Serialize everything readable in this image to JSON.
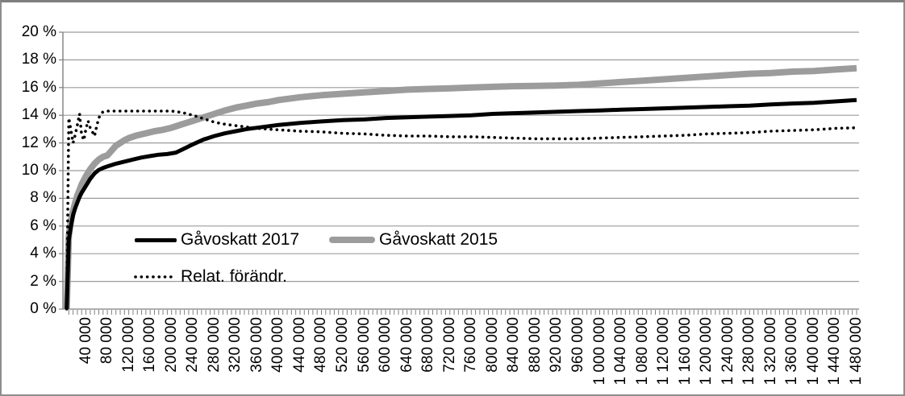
{
  "colors": {
    "background": "#ffffff",
    "frame_border": "#8e8e8e",
    "gridline": "#9b9b9b",
    "axis": "#7f7f7f",
    "series_2017": "#000000",
    "series_2015": "#9c9c9c",
    "series_relative": "#000000"
  },
  "chart_data": {
    "type": "line",
    "title": "",
    "xlabel": "",
    "ylabel": "",
    "grid": true,
    "legend_position": "inside-plot-left",
    "y_axis": {
      "min": 0,
      "max": 20,
      "step": 2,
      "unit": "%",
      "tick_labels": [
        "0 %",
        "2 %",
        "4 %",
        "6 %",
        "8 %",
        "10 %",
        "12 %",
        "14 %",
        "16 %",
        "18 %",
        "20 %"
      ]
    },
    "x_axis": {
      "min": 0,
      "max": 1480000,
      "label_step": 40000,
      "minor_tick_step": 8000,
      "tick_labels": [
        "40 000",
        "80 000",
        "120 000",
        "160 000",
        "200 000",
        "240 000",
        "280 000",
        "320 000",
        "360 000",
        "400 000",
        "440 000",
        "480 000",
        "520 000",
        "560 000",
        "600 000",
        "640 000",
        "680 000",
        "720 000",
        "760 000",
        "800 000",
        "840 000",
        "880 000",
        "920 000",
        "960 000",
        "1 000 000",
        "1 040 000",
        "1 080 000",
        "1 120 000",
        "1 160 000",
        "1 200 000",
        "1 240 000",
        "1 280 000",
        "1 320 000",
        "1 360 000",
        "1 400 000",
        "1 440 000",
        "1 480 000"
      ]
    },
    "legend": [
      {
        "label": "Gåvoskatt 2017",
        "style": "solid-black"
      },
      {
        "label": "Gåvoskatt 2015",
        "style": "solid-gray"
      },
      {
        "label": "Relat. förändr.",
        "style": "dotted-black"
      }
    ],
    "series": [
      {
        "name": "Gåvoskatt 2015",
        "color": "#9c9c9c",
        "width": 8,
        "dash": "solid",
        "points": [
          [
            4000,
            0
          ],
          [
            8000,
            5.3
          ],
          [
            12000,
            6.4
          ],
          [
            16000,
            7.1
          ],
          [
            20000,
            7.7
          ],
          [
            24000,
            8.2
          ],
          [
            28000,
            8.6
          ],
          [
            32000,
            9.0
          ],
          [
            36000,
            9.3
          ],
          [
            40000,
            9.6
          ],
          [
            48000,
            10.1
          ],
          [
            56000,
            10.5
          ],
          [
            64000,
            10.8
          ],
          [
            72000,
            11.0
          ],
          [
            80000,
            11.1
          ],
          [
            88000,
            11.45
          ],
          [
            96000,
            11.8
          ],
          [
            104000,
            12.0
          ],
          [
            112000,
            12.2
          ],
          [
            120000,
            12.35
          ],
          [
            136000,
            12.55
          ],
          [
            152000,
            12.7
          ],
          [
            168000,
            12.85
          ],
          [
            184000,
            12.95
          ],
          [
            200000,
            13.1
          ],
          [
            216000,
            13.3
          ],
          [
            232000,
            13.5
          ],
          [
            248000,
            13.7
          ],
          [
            264000,
            13.9
          ],
          [
            280000,
            14.1
          ],
          [
            300000,
            14.35
          ],
          [
            320000,
            14.55
          ],
          [
            340000,
            14.7
          ],
          [
            360000,
            14.85
          ],
          [
            380000,
            14.95
          ],
          [
            400000,
            15.1
          ],
          [
            440000,
            15.3
          ],
          [
            480000,
            15.45
          ],
          [
            520000,
            15.55
          ],
          [
            560000,
            15.65
          ],
          [
            600000,
            15.75
          ],
          [
            640000,
            15.85
          ],
          [
            680000,
            15.9
          ],
          [
            720000,
            15.95
          ],
          [
            760000,
            16.0
          ],
          [
            800000,
            16.05
          ],
          [
            840000,
            16.1
          ],
          [
            880000,
            16.12
          ],
          [
            920000,
            16.15
          ],
          [
            960000,
            16.2
          ],
          [
            1000000,
            16.3
          ],
          [
            1040000,
            16.4
          ],
          [
            1080000,
            16.5
          ],
          [
            1120000,
            16.6
          ],
          [
            1160000,
            16.7
          ],
          [
            1200000,
            16.8
          ],
          [
            1240000,
            16.9
          ],
          [
            1280000,
            17.0
          ],
          [
            1320000,
            17.05
          ],
          [
            1360000,
            17.15
          ],
          [
            1400000,
            17.2
          ],
          [
            1440000,
            17.3
          ],
          [
            1480000,
            17.4
          ]
        ]
      },
      {
        "name": "Gåvoskatt 2017",
        "color": "#000000",
        "width": 5,
        "dash": "solid",
        "points": [
          [
            4000,
            0
          ],
          [
            8000,
            5.0
          ],
          [
            12000,
            6.0
          ],
          [
            16000,
            6.8
          ],
          [
            20000,
            7.3
          ],
          [
            24000,
            7.7
          ],
          [
            28000,
            8.1
          ],
          [
            32000,
            8.4
          ],
          [
            36000,
            8.65
          ],
          [
            40000,
            8.9
          ],
          [
            48000,
            9.4
          ],
          [
            56000,
            9.8
          ],
          [
            64000,
            10.05
          ],
          [
            72000,
            10.2
          ],
          [
            80000,
            10.3
          ],
          [
            96000,
            10.5
          ],
          [
            112000,
            10.65
          ],
          [
            128000,
            10.8
          ],
          [
            144000,
            10.95
          ],
          [
            160000,
            11.05
          ],
          [
            176000,
            11.15
          ],
          [
            192000,
            11.2
          ],
          [
            208000,
            11.3
          ],
          [
            224000,
            11.6
          ],
          [
            240000,
            11.9
          ],
          [
            260000,
            12.25
          ],
          [
            280000,
            12.5
          ],
          [
            300000,
            12.7
          ],
          [
            320000,
            12.85
          ],
          [
            340000,
            13.0
          ],
          [
            360000,
            13.1
          ],
          [
            400000,
            13.3
          ],
          [
            440000,
            13.45
          ],
          [
            480000,
            13.55
          ],
          [
            520000,
            13.65
          ],
          [
            560000,
            13.7
          ],
          [
            600000,
            13.8
          ],
          [
            640000,
            13.85
          ],
          [
            680000,
            13.9
          ],
          [
            720000,
            13.95
          ],
          [
            760000,
            14.0
          ],
          [
            800000,
            14.1
          ],
          [
            840000,
            14.15
          ],
          [
            880000,
            14.2
          ],
          [
            920000,
            14.25
          ],
          [
            960000,
            14.3
          ],
          [
            1000000,
            14.35
          ],
          [
            1040000,
            14.4
          ],
          [
            1080000,
            14.45
          ],
          [
            1120000,
            14.5
          ],
          [
            1160000,
            14.55
          ],
          [
            1200000,
            14.6
          ],
          [
            1240000,
            14.65
          ],
          [
            1280000,
            14.7
          ],
          [
            1320000,
            14.78
          ],
          [
            1360000,
            14.85
          ],
          [
            1400000,
            14.9
          ],
          [
            1440000,
            15.0
          ],
          [
            1480000,
            15.1
          ]
        ]
      },
      {
        "name": "Relat. förändr.",
        "color": "#000000",
        "width": 3.6,
        "dash": "dotted",
        "points": [
          [
            4000,
            0
          ],
          [
            8000,
            13.8
          ],
          [
            12000,
            12.9
          ],
          [
            16000,
            12.0
          ],
          [
            20000,
            12.6
          ],
          [
            24000,
            13.3
          ],
          [
            28000,
            14.1
          ],
          [
            32000,
            12.6
          ],
          [
            36000,
            12.2
          ],
          [
            40000,
            13.0
          ],
          [
            44000,
            13.6
          ],
          [
            48000,
            13.1
          ],
          [
            52000,
            12.8
          ],
          [
            56000,
            12.5
          ],
          [
            60000,
            13.2
          ],
          [
            64000,
            13.8
          ],
          [
            68000,
            14.1
          ],
          [
            72000,
            14.25
          ],
          [
            80000,
            14.3
          ],
          [
            120000,
            14.3
          ],
          [
            160000,
            14.3
          ],
          [
            200000,
            14.3
          ],
          [
            220000,
            14.2
          ],
          [
            240000,
            14.0
          ],
          [
            260000,
            13.75
          ],
          [
            280000,
            13.5
          ],
          [
            300000,
            13.35
          ],
          [
            320000,
            13.25
          ],
          [
            360000,
            13.05
          ],
          [
            400000,
            12.95
          ],
          [
            440000,
            12.85
          ],
          [
            480000,
            12.8
          ],
          [
            520000,
            12.7
          ],
          [
            560000,
            12.65
          ],
          [
            600000,
            12.55
          ],
          [
            640000,
            12.5
          ],
          [
            680000,
            12.5
          ],
          [
            720000,
            12.45
          ],
          [
            760000,
            12.45
          ],
          [
            800000,
            12.4
          ],
          [
            840000,
            12.35
          ],
          [
            880000,
            12.3
          ],
          [
            920000,
            12.3
          ],
          [
            960000,
            12.3
          ],
          [
            1000000,
            12.35
          ],
          [
            1040000,
            12.4
          ],
          [
            1080000,
            12.45
          ],
          [
            1120000,
            12.5
          ],
          [
            1160000,
            12.55
          ],
          [
            1200000,
            12.65
          ],
          [
            1240000,
            12.7
          ],
          [
            1280000,
            12.75
          ],
          [
            1320000,
            12.85
          ],
          [
            1360000,
            12.9
          ],
          [
            1400000,
            12.95
          ],
          [
            1440000,
            13.05
          ],
          [
            1480000,
            13.1
          ]
        ]
      }
    ]
  }
}
